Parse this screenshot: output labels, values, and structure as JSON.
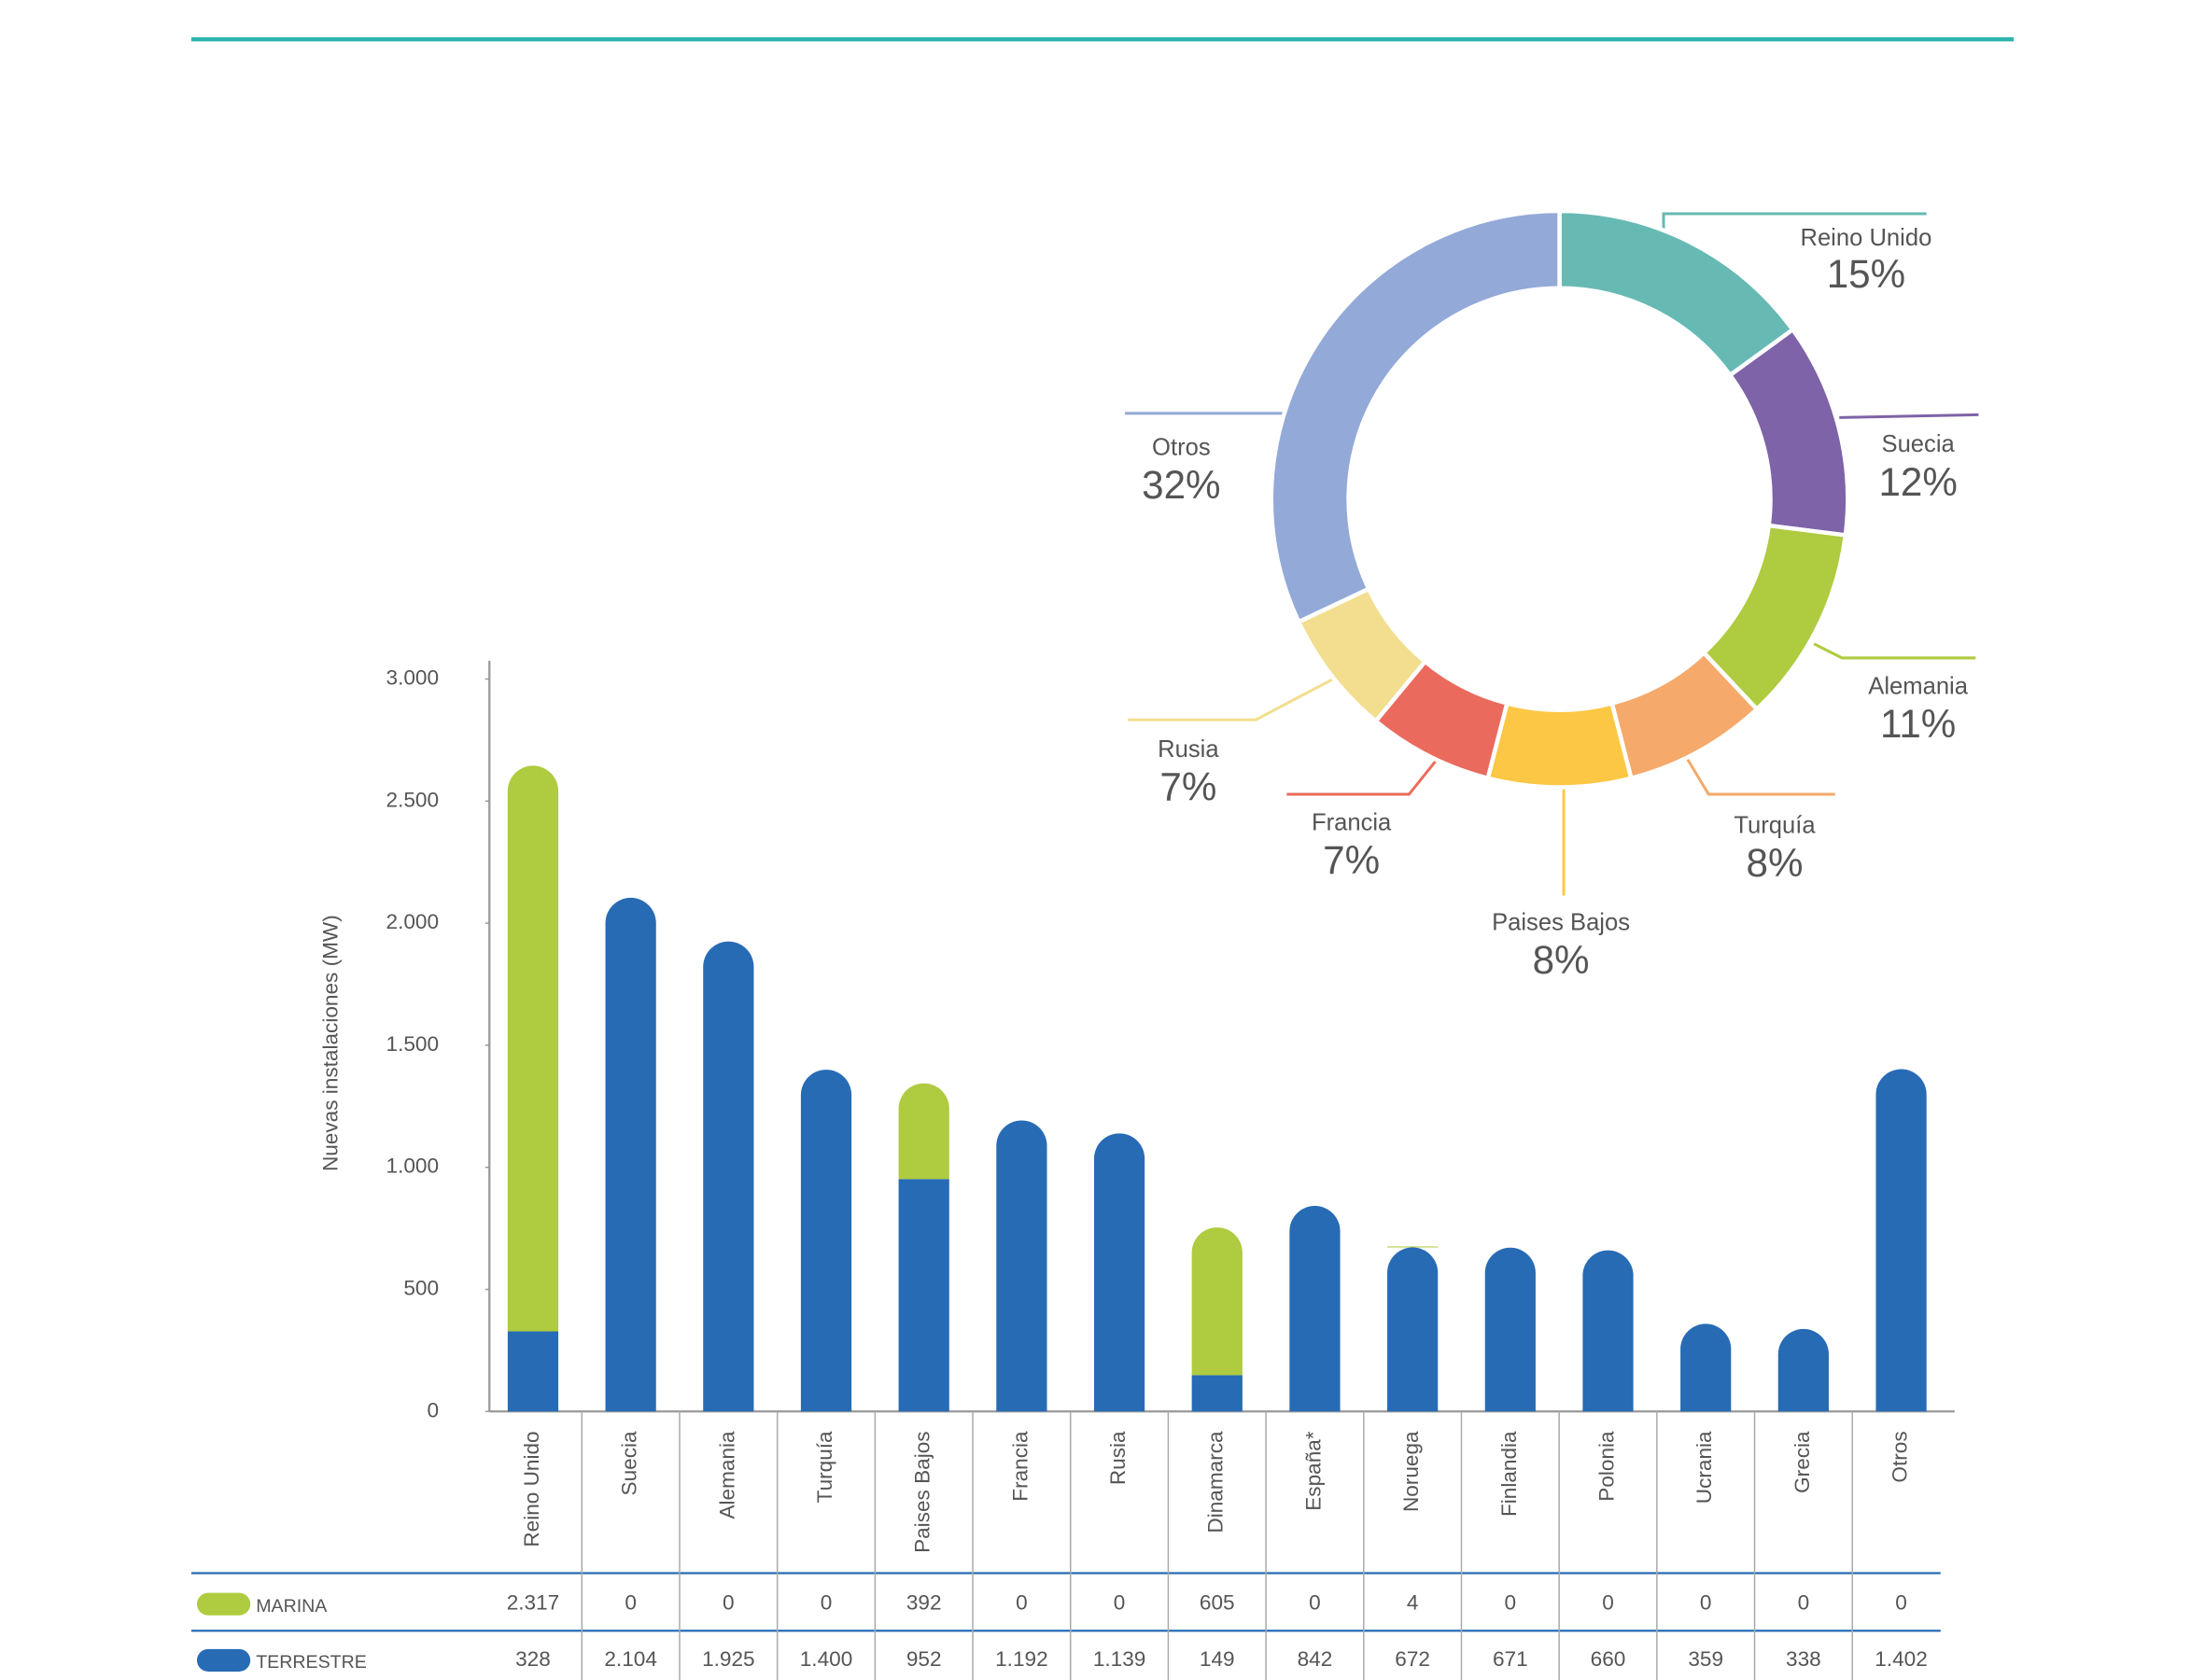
{
  "chart_data": [
    {
      "type": "bar",
      "stacked": true,
      "y_label": "Nuevas instalaciones (MW)",
      "categories": [
        "Reino Unido",
        "Suecia",
        "Alemania",
        "Turquía",
        "Paises Bajos",
        "Francia",
        "Rusia",
        "Dinamarca",
        "España*",
        "Noruega",
        "Finlandia",
        "Polonia",
        "Ucrania",
        "Grecia",
        "Otros"
      ],
      "series": [
        {
          "name": "TERRESTRE",
          "color": "#276bb5",
          "values": [
            328,
            2104,
            1925,
            1400,
            952,
            1192,
            1139,
            149,
            842,
            672,
            671,
            660,
            359,
            338,
            1402
          ],
          "value_labels": [
            "328",
            "2.104",
            "1.925",
            "1.400",
            "952",
            "1.192",
            "1.139",
            "149",
            "842",
            "672",
            "671",
            "660",
            "359",
            "338",
            "1.402"
          ]
        },
        {
          "name": "MARINA",
          "color": "#afcb3f",
          "values": [
            2317,
            0,
            0,
            0,
            392,
            0,
            0,
            605,
            0,
            4,
            0,
            0,
            0,
            0,
            0
          ],
          "value_labels": [
            "2.317",
            "0",
            "0",
            "0",
            "392",
            "0",
            "0",
            "605",
            "0",
            "4",
            "0",
            "0",
            "0",
            "0",
            "0"
          ]
        }
      ],
      "ylim": [
        0,
        3000
      ],
      "yticks": [
        0,
        500,
        {
          "value": 1000,
          "label": "1.000"
        },
        {
          "value": 1500,
          "label": "1.500"
        },
        {
          "value": 2000,
          "label": "2.000"
        },
        {
          "value": 2500,
          "label": "2.500"
        },
        {
          "value": 3000,
          "label": "3.000"
        }
      ],
      "grid": false
    },
    {
      "type": "pie",
      "donut": true,
      "categories": [
        "Reino Unido",
        "Suecia",
        "Alemania",
        "Turquía",
        "Paises Bajos",
        "Francia",
        "Rusia",
        "Otros"
      ],
      "values": [
        15,
        12,
        11,
        8,
        8,
        7,
        7,
        32
      ],
      "value_labels": [
        "15%",
        "12%",
        "11%",
        "8%",
        "8%",
        "7%",
        "7%",
        "32%"
      ],
      "colors": [
        "#67bab3",
        "#7e63a8",
        "#afcb3f",
        "#f5a96a",
        "#fcc744",
        "#ea6b5d",
        "#f2de8e",
        "#93a9d8"
      ]
    }
  ]
}
